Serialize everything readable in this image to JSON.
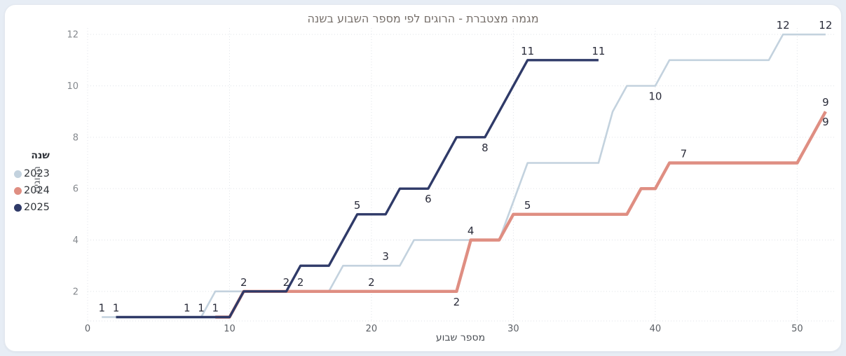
{
  "chart_data": {
    "type": "line",
    "step_style": "weekly cumulative, linear interpolation between weekly points",
    "title": "מגמה מצטברת - הרוגים לפי מספר השבוע בשנה",
    "xlabel": "מספר שבוע",
    "ylabel": "הרוגים",
    "legend_title": "שנה",
    "legend_position": "left-middle",
    "grid": true,
    "x_ticks": [
      0,
      10,
      20,
      30,
      40,
      50
    ],
    "y_ticks": [
      2,
      4,
      6,
      8,
      10,
      12
    ],
    "xlim": [
      0,
      52.6
    ],
    "ylim": [
      0.85,
      12.25
    ],
    "series": [
      {
        "name": "2023",
        "color": "#c3d2de",
        "line_width": 2.6,
        "points": [
          [
            1,
            1
          ],
          [
            8,
            1
          ],
          [
            9,
            2
          ],
          [
            17,
            2
          ],
          [
            18,
            3
          ],
          [
            22,
            3
          ],
          [
            23,
            4
          ],
          [
            29,
            4
          ],
          [
            31,
            7
          ],
          [
            36,
            7
          ],
          [
            37,
            9
          ],
          [
            38,
            10
          ],
          [
            40,
            10
          ],
          [
            41,
            11
          ],
          [
            48,
            11
          ],
          [
            49,
            12
          ],
          [
            52,
            12
          ]
        ],
        "labels": [
          [
            1,
            1,
            "1",
            "above"
          ],
          [
            7,
            1,
            "1",
            "above"
          ],
          [
            21,
            3,
            "3",
            "above"
          ],
          [
            40,
            10,
            "10",
            "below"
          ],
          [
            49,
            12,
            "12",
            "above"
          ],
          [
            52,
            12,
            "12",
            "above"
          ]
        ]
      },
      {
        "name": "2024",
        "color": "#df8e82",
        "line_width": 4.4,
        "points": [
          [
            9,
            1
          ],
          [
            10,
            1
          ],
          [
            11,
            2
          ],
          [
            26,
            2
          ],
          [
            27,
            4
          ],
          [
            29,
            4
          ],
          [
            30,
            5
          ],
          [
            38,
            5
          ],
          [
            39,
            6
          ],
          [
            40,
            6
          ],
          [
            41,
            7
          ],
          [
            50,
            7
          ],
          [
            52,
            9
          ]
        ],
        "labels": [
          [
            9,
            1,
            "1",
            "above"
          ],
          [
            15,
            2,
            "2",
            "above"
          ],
          [
            20,
            2,
            "2",
            "above"
          ],
          [
            26,
            2,
            "2",
            "below"
          ],
          [
            27,
            4,
            "4",
            "above"
          ],
          [
            31,
            5,
            "5",
            "above"
          ],
          [
            42,
            7,
            "7",
            "above"
          ],
          [
            52,
            9,
            "9",
            "above"
          ],
          [
            52,
            9,
            "9",
            "below"
          ]
        ]
      },
      {
        "name": "2025",
        "color": "#2f3a68",
        "line_width": 3.4,
        "points": [
          [
            2,
            1
          ],
          [
            10,
            1
          ],
          [
            11,
            2
          ],
          [
            14,
            2
          ],
          [
            15,
            3
          ],
          [
            17,
            3
          ],
          [
            18,
            4
          ],
          [
            19,
            5
          ],
          [
            21,
            5
          ],
          [
            22,
            6
          ],
          [
            24,
            6
          ],
          [
            25,
            7
          ],
          [
            26,
            8
          ],
          [
            28,
            8
          ],
          [
            29,
            9
          ],
          [
            30,
            10
          ],
          [
            31,
            11
          ],
          [
            36,
            11
          ]
        ],
        "labels": [
          [
            2,
            1,
            "1",
            "above"
          ],
          [
            8,
            1,
            "1",
            "above"
          ],
          [
            11,
            2,
            "2",
            "above"
          ],
          [
            14,
            2,
            "2",
            "above"
          ],
          [
            19,
            5,
            "5",
            "above"
          ],
          [
            24,
            6,
            "6",
            "below"
          ],
          [
            28,
            8,
            "8",
            "below"
          ],
          [
            31,
            11,
            "11",
            "above"
          ],
          [
            36,
            11,
            "11",
            "above"
          ]
        ]
      }
    ],
    "style": {
      "grid_color": "#e0e3e8",
      "x_tick_color": "#5c6066",
      "y_tick_color": "#85898e",
      "point_label_color": "#2a2c3a",
      "point_label_size": 15,
      "tick_label_size": 13
    }
  }
}
